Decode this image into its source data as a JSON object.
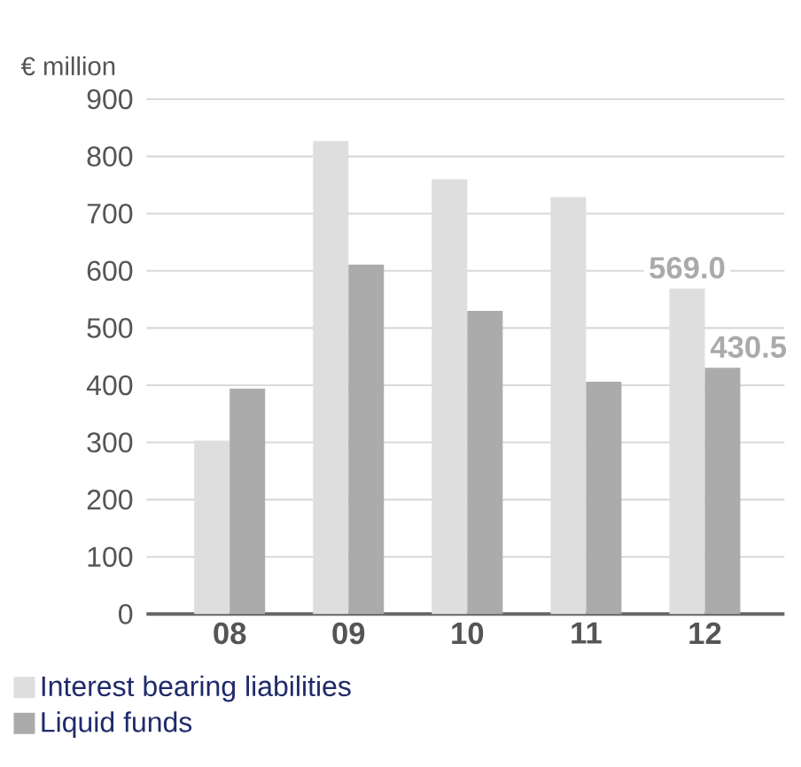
{
  "chart_data": {
    "type": "bar",
    "ylabel": "€ million",
    "categories": [
      "08",
      "09",
      "10",
      "11",
      "12"
    ],
    "series": [
      {
        "name": "Interest bearing liabilities",
        "color": "#dedede",
        "values": [
          303,
          827,
          760,
          729,
          569.0
        ],
        "value_labels": [
          null,
          null,
          null,
          null,
          "569.0"
        ]
      },
      {
        "name": "Liquid funds",
        "color": "#ababab",
        "values": [
          394,
          611,
          530,
          406,
          430.5
        ],
        "value_labels": [
          null,
          null,
          null,
          null,
          "430.5"
        ]
      }
    ],
    "ylim": [
      0,
      900
    ],
    "yticks": [
      0,
      100,
      200,
      300,
      400,
      500,
      600,
      700,
      800,
      900
    ],
    "grid": "y",
    "legend": "bottom"
  }
}
